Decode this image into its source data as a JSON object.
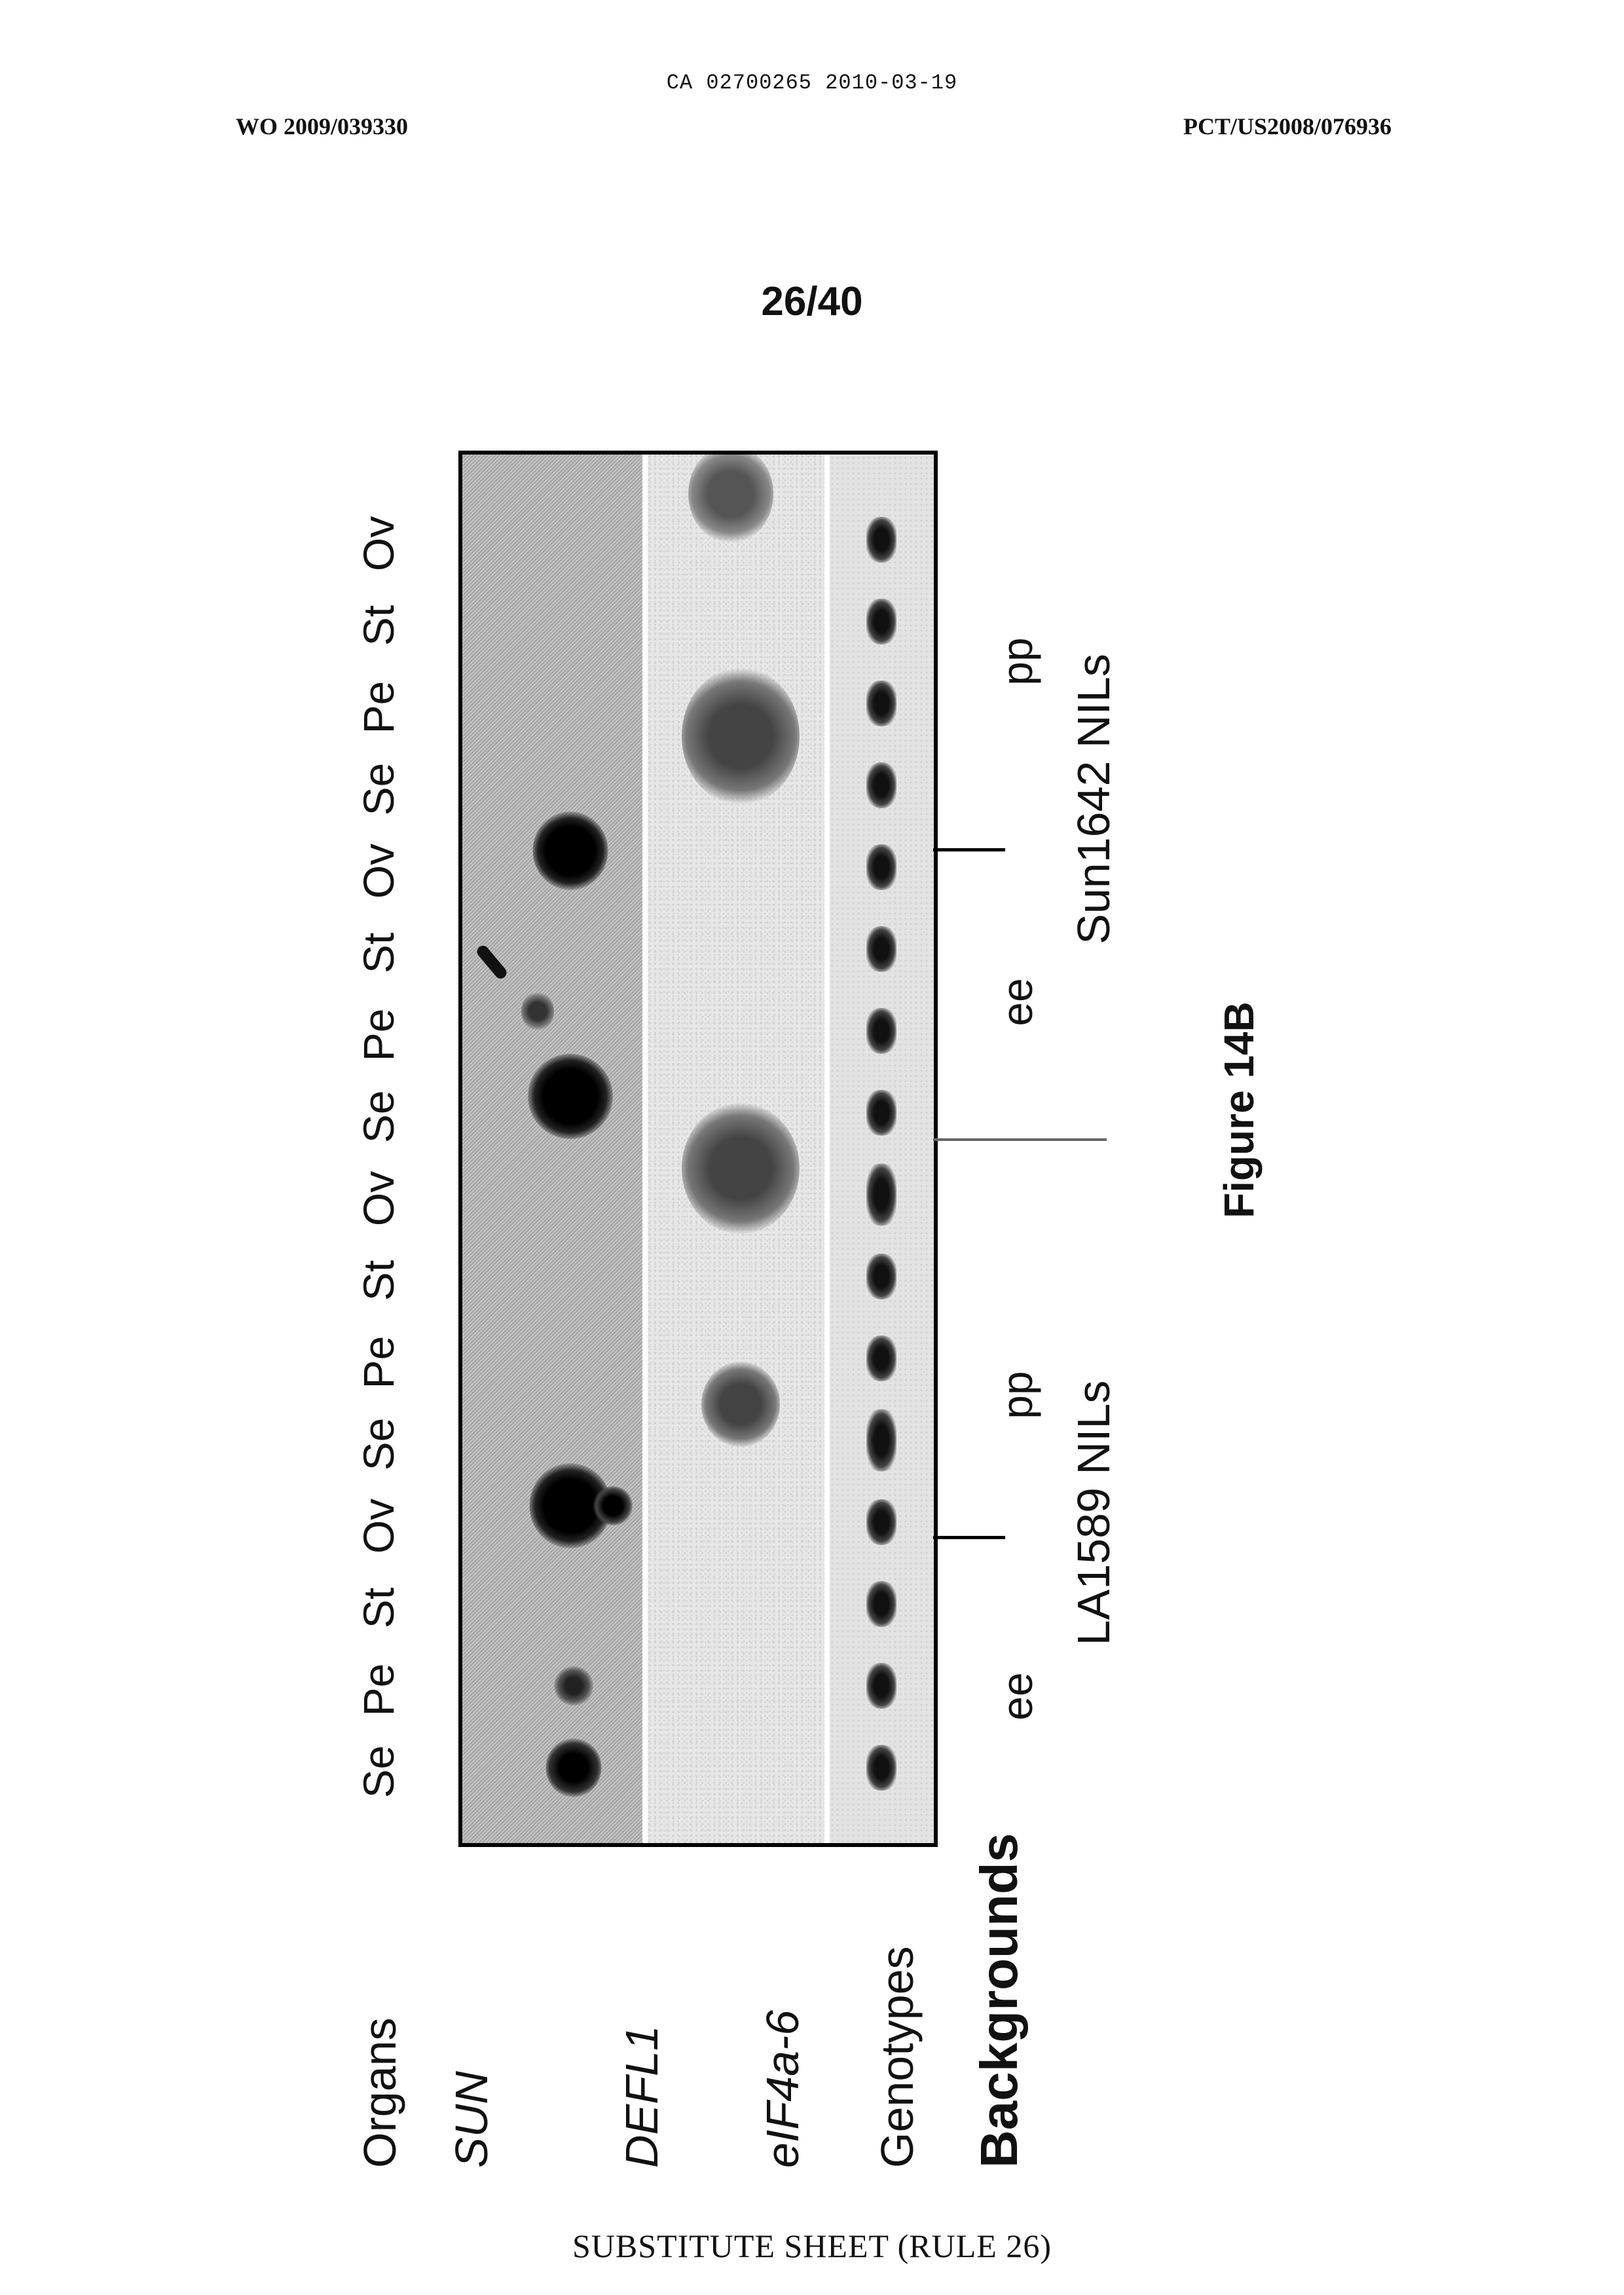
{
  "header": {
    "ca_line": "CA 02700265 2010-03-19",
    "wo_number": "WO 2009/039330",
    "pct_number": "PCT/US2008/076936"
  },
  "page_number": "26/40",
  "figure": {
    "caption": "Figure 14B",
    "row_labels": {
      "organs": "Organs",
      "sun": "SUN",
      "defl1": "DEFL1",
      "eif": "eIF4a-6",
      "genotypes": "Genotypes",
      "backgrounds": "Backgrounds"
    },
    "lanes": [
      "Se",
      "Pe",
      "St",
      "Ov",
      "Se",
      "Pe",
      "St",
      "Ov",
      "Se",
      "Pe",
      "St",
      "Ov",
      "Se",
      "Pe",
      "St",
      "Ov"
    ],
    "genotypes": [
      "ee",
      "pp",
      "ee",
      "pp"
    ],
    "backgrounds": [
      "LA1589 NILs",
      "Sun1642 NILs"
    ]
  },
  "footer": "SUBSTITUTE SHEET (RULE 26)"
}
